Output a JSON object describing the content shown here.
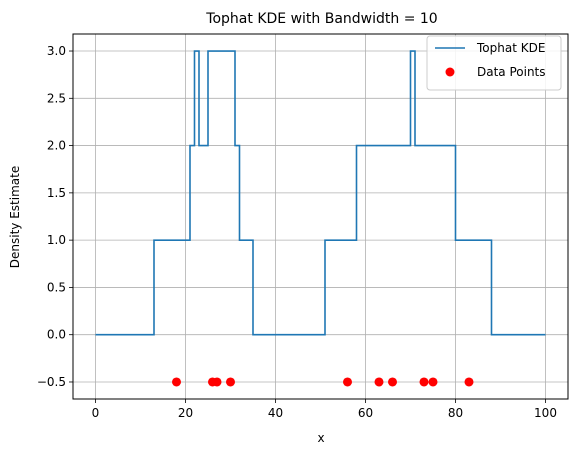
{
  "chart_data": {
    "type": "line",
    "title": "Tophat KDE with Bandwidth = 10",
    "xlabel": "x",
    "ylabel": "Density Estimate",
    "xlim": [
      -5,
      105
    ],
    "ylim": [
      -0.68,
      3.18
    ],
    "xticks": [
      0,
      20,
      40,
      60,
      80,
      100
    ],
    "yticks": [
      -0.5,
      0.0,
      0.5,
      1.0,
      1.5,
      2.0,
      2.5,
      3.0
    ],
    "xtick_labels": [
      "0",
      "20",
      "40",
      "60",
      "80",
      "100"
    ],
    "ytick_labels": [
      "−0.5",
      "0.0",
      "0.5",
      "1.0",
      "1.5",
      "2.0",
      "2.5",
      "3.0"
    ],
    "grid": true,
    "legend_position": "top-right",
    "series": [
      {
        "name": "Tophat KDE",
        "kind": "step-line",
        "color": "#1f77b4",
        "points": [
          [
            0,
            0
          ],
          [
            13,
            0
          ],
          [
            13,
            1
          ],
          [
            21,
            1
          ],
          [
            21,
            2
          ],
          [
            22,
            2
          ],
          [
            22,
            3
          ],
          [
            23,
            3
          ],
          [
            23,
            2
          ],
          [
            25,
            2
          ],
          [
            25,
            3
          ],
          [
            31,
            3
          ],
          [
            31,
            2
          ],
          [
            32,
            2
          ],
          [
            32,
            1
          ],
          [
            35,
            1
          ],
          [
            35,
            0
          ],
          [
            51,
            0
          ],
          [
            51,
            1
          ],
          [
            58,
            1
          ],
          [
            58,
            2
          ],
          [
            70,
            2
          ],
          [
            70,
            3
          ],
          [
            71,
            3
          ],
          [
            71,
            2
          ],
          [
            80,
            2
          ],
          [
            80,
            1
          ],
          [
            88,
            1
          ],
          [
            88,
            0
          ],
          [
            100,
            0
          ]
        ]
      },
      {
        "name": "Data Points",
        "kind": "scatter",
        "color": "#ff0000",
        "x": [
          18,
          26,
          27,
          30,
          56,
          63,
          66,
          73,
          75,
          83
        ],
        "y": [
          -0.5,
          -0.5,
          -0.5,
          -0.5,
          -0.5,
          -0.5,
          -0.5,
          -0.5,
          -0.5,
          -0.5
        ]
      }
    ]
  }
}
